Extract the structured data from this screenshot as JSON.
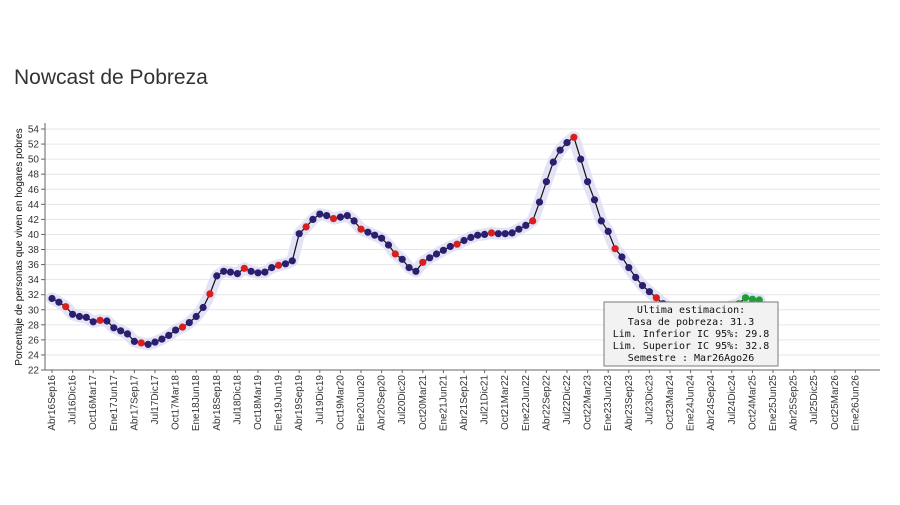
{
  "page": {
    "title": "Nowcast de Pobreza"
  },
  "chart_data": {
    "type": "line",
    "title": "Nowcast de Pobreza",
    "ylabel": "Porcentaje de personas que viven en hogares pobres",
    "xlabel": "",
    "ylim": [
      22,
      54
    ],
    "yticks": [
      22,
      24,
      26,
      28,
      30,
      32,
      34,
      36,
      38,
      40,
      42,
      44,
      46,
      48,
      50,
      52,
      54
    ],
    "grid": true,
    "x_tick_labels": [
      "Abr16Sep16",
      "Jul16Dic16",
      "Oct16Mar17",
      "Ene17Jun17",
      "Abr17Sep17",
      "Jul17Dic17",
      "Oct17Mar18",
      "Ene18Jun18",
      "Abr18Sep18",
      "Jul18Dic18",
      "Oct18Mar19",
      "Ene19Jun19",
      "Abr19Sep19",
      "Jul19Dic19",
      "Oct19Mar20",
      "Ene20Jun20",
      "Abr20Sep20",
      "Jul20Dic20",
      "Oct20Mar21",
      "Ene21Jun21",
      "Abr21Sep21",
      "Jul21Dic21",
      "Oct21Mar22",
      "Ene22Jun22",
      "Abr22Sep22",
      "Jul22Dic22",
      "Oct22Mar23",
      "Ene23Jun23",
      "Abr23Sep23",
      "Jul23Dic23",
      "Oct23Mar24",
      "Ene24Jun24",
      "Abr24Sep24",
      "Jul24Dic24",
      "Oct24Mar25",
      "Ene25Jun25",
      "Abr25Sep25",
      "Jul25Dic25",
      "Oct25Mar26",
      "Ene26Jun26"
    ],
    "points_per_label": 3,
    "series": [
      {
        "color": "#2a1f6e",
        "highlight_color": "#d62020",
        "values": [
          31.5,
          31.0,
          30.4,
          29.4,
          29.1,
          29.0,
          28.4,
          28.6,
          28.5,
          27.6,
          27.2,
          26.8,
          25.8,
          25.6,
          25.4,
          25.7,
          26.1,
          26.6,
          27.3,
          27.7,
          28.3,
          29.1,
          30.3,
          32.1,
          34.5,
          35.1,
          35.0,
          34.8,
          35.5,
          35.1,
          34.9,
          35.0,
          35.6,
          35.9,
          36.1,
          36.5,
          40.1,
          41.0,
          42.0,
          42.7,
          42.5,
          42.1,
          42.3,
          42.5,
          41.8,
          40.7,
          40.3,
          39.9,
          39.5,
          38.6,
          37.4,
          36.7,
          35.6,
          35.1,
          36.3,
          36.9,
          37.4,
          37.9,
          38.4,
          38.7,
          39.2,
          39.6,
          39.9,
          40.0,
          40.2,
          40.1,
          40.1,
          40.2,
          40.7,
          41.2,
          41.8,
          44.3,
          47.0,
          49.6,
          51.2,
          52.2,
          52.9,
          50.0,
          47.0,
          44.6,
          41.8,
          40.4,
          38.1,
          37.0,
          35.6,
          34.3,
          33.2,
          32.4,
          31.6,
          30.8,
          30.2,
          29.5,
          28.8,
          28.4,
          28.1
        ],
        "highlight_indices": [
          2,
          7,
          13,
          19,
          23,
          28,
          33,
          37,
          41,
          45,
          50,
          54,
          59,
          64,
          70,
          76,
          82,
          88,
          93
        ]
      },
      {
        "color": "#1e9e35",
        "values": [
          28.2,
          28.6,
          29.3,
          29.7,
          30.2,
          30.5,
          30.8,
          31.6,
          31.4,
          31.3
        ]
      }
    ],
    "tooltip": {
      "title": "Ultima estimacion:",
      "lines": [
        "Tasa de pobreza:  31.3",
        "Lim. Inferior IC 95%:  29.8",
        "Lim. Superior IC 95%:  32.8",
        "Semestre : Mar26Ago26"
      ]
    }
  }
}
